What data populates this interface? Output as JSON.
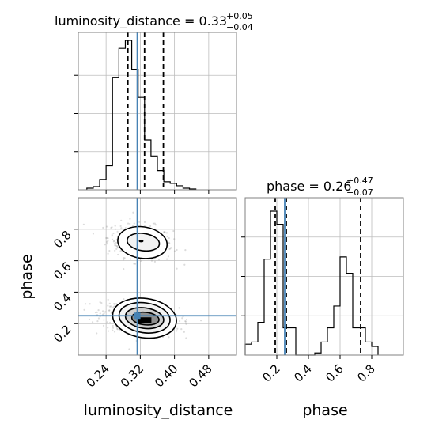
{
  "chart_data": {
    "type": "corner",
    "titles": {
      "luminosity_distance": {
        "name": "luminosity_distance",
        "median": "0.33",
        "plus": "+0.05",
        "minus": "−0.04"
      },
      "phase": {
        "name": "phase",
        "median": "0.26",
        "plus": "+0.47",
        "minus": "−0.07"
      }
    },
    "axis_labels": {
      "x_left": "luminosity_distance",
      "x_right": "phase",
      "y_bottom": "phase"
    },
    "x_ticks_lum": [
      "0.24",
      "0.32",
      "0.40",
      "0.48"
    ],
    "x_ticks_phase": [
      "0.2",
      "0.4",
      "0.6",
      "0.8"
    ],
    "y_ticks_phase": [
      "0.2",
      "0.4",
      "0.6",
      "0.8"
    ],
    "lum_range": [
      0.175,
      0.545
    ],
    "phase_range": [
      0.0,
      1.0
    ],
    "truths": {
      "luminosity_distance": 0.313,
      "phase": 0.25
    },
    "hist_lum": {
      "edges_start": 0.195,
      "bin_width": 0.015,
      "counts": [
        2,
        4,
        13,
        30,
        140,
        176,
        186,
        150,
        115,
        62,
        42,
        24,
        10,
        8,
        5,
        2,
        1
      ],
      "quantiles": [
        0.291,
        0.33,
        0.374
      ],
      "ymax": 190
    },
    "hist_phase": {
      "edges_start": 0.0,
      "bin_width": 0.04,
      "counts": [
        10,
        12,
        30,
        88,
        132,
        120,
        25,
        25,
        0,
        0,
        0,
        2,
        12,
        25,
        45,
        90,
        75,
        25,
        25,
        12,
        8
      ],
      "quantiles": [
        0.19,
        0.26,
        0.73
      ],
      "ymax": 140
    },
    "peak_top": {
      "luminosity_distance": 0.32,
      "phase": 0.72
    },
    "peak_bottom": {
      "luminosity_distance": 0.32,
      "phase": 0.23
    },
    "colors": {
      "truth": "#4682b4",
      "line": "#000000",
      "grid": "#bdbdbd",
      "points": "#9a9a9a"
    }
  }
}
